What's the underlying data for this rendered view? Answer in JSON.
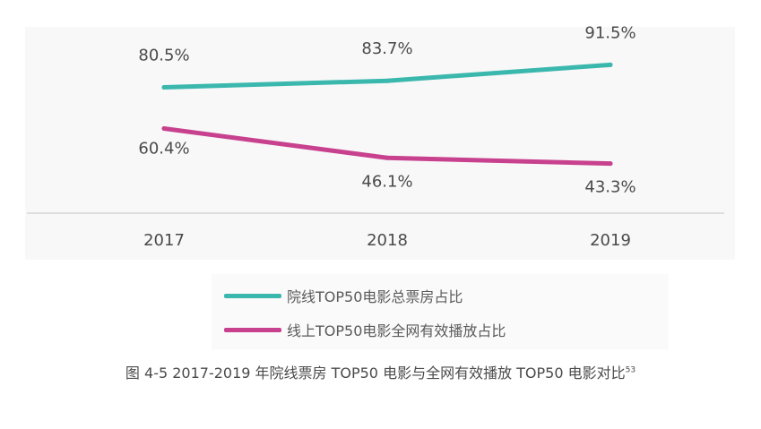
{
  "chart_data": {
    "type": "line",
    "categories": [
      "2017",
      "2018",
      "2019"
    ],
    "series": [
      {
        "name": "院线TOP50电影总票房占比",
        "values": [
          80.5,
          83.7,
          91.5
        ],
        "labels": [
          "80.5%",
          "83.7%",
          "91.5%"
        ],
        "color": "#3bb8ae"
      },
      {
        "name": "线上TOP50电影全网有效播放占比",
        "values": [
          60.4,
          46.1,
          43.3
        ],
        "labels": [
          "60.4%",
          "46.1%",
          "43.3%"
        ],
        "color": "#c8418e"
      }
    ],
    "ylim": [
      20,
      110
    ],
    "grid": false,
    "legend_position": "bottom"
  },
  "caption": {
    "text": "图 4-5 2017-2019 年院线票房 TOP50 电影与全网有效播放 TOP50 电影对比",
    "footnote": "53"
  }
}
